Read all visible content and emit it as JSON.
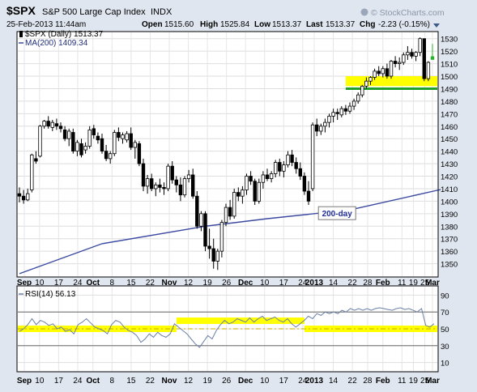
{
  "header": {
    "symbol": "$SPX",
    "name": "S&P 500 Large Cap Index",
    "exchange": "INDX",
    "credit": "© StockCharts.com",
    "date": "25-Feb-2013 11:44am",
    "quote": [
      {
        "label": "Open",
        "value": "1515.60"
      },
      {
        "label": "High",
        "value": "1525.84"
      },
      {
        "label": "Low",
        "value": "1513.37"
      },
      {
        "label": "Last",
        "value": "1513.37"
      },
      {
        "label": "Chg",
        "value": "-2.23 (-0.15%)"
      }
    ]
  },
  "legend": {
    "price": "$SPX (Daily) 1513.37",
    "ma": "MA(200) 1409.34"
  },
  "rsi_legend": "RSI(14) 56.13",
  "annotation": "200-day",
  "colors": {
    "candle": "#000000",
    "ma_line": "#3b4aa0",
    "rsi_line": "#6b7fa6",
    "highlight": "#ffff00",
    "support": "#1e9e2a",
    "background": "#ffffff",
    "frame": "#dfe6ef",
    "reference": "#c9a800"
  },
  "chart_data": [
    {
      "type": "candlestick",
      "title": "$SPX S&P 500 Large Cap Index",
      "ylim": [
        1340,
        1535
      ],
      "y_ticks": [
        1350,
        1360,
        1370,
        1380,
        1390,
        1400,
        1410,
        1420,
        1430,
        1440,
        1450,
        1460,
        1470,
        1480,
        1490,
        1500,
        1510,
        1520,
        1530
      ],
      "x_ticks": [
        "Sep",
        "10",
        "17",
        "24",
        "Oct",
        "8",
        "15",
        "22",
        "Nov",
        "12",
        "19",
        "26",
        "Dec",
        "10",
        "17",
        "24",
        "2013",
        "14",
        "22",
        "28",
        "Feb",
        "11",
        "19",
        "25",
        "Mar"
      ],
      "candles": [
        [
          1406,
          1411,
          1399,
          1404
        ],
        [
          1404,
          1409,
          1398,
          1401
        ],
        [
          1401,
          1410,
          1400,
          1406
        ],
        [
          1409,
          1438,
          1407,
          1437
        ],
        [
          1434,
          1440,
          1430,
          1432
        ],
        [
          1436,
          1461,
          1435,
          1460
        ],
        [
          1460,
          1465,
          1458,
          1464
        ],
        [
          1464,
          1468,
          1458,
          1460
        ],
        [
          1459,
          1465,
          1456,
          1463
        ],
        [
          1462,
          1466,
          1457,
          1460
        ],
        [
          1460,
          1463,
          1455,
          1458
        ],
        [
          1457,
          1460,
          1448,
          1450
        ],
        [
          1450,
          1458,
          1444,
          1456
        ],
        [
          1455,
          1458,
          1438,
          1440
        ],
        [
          1440,
          1449,
          1436,
          1447
        ],
        [
          1446,
          1450,
          1435,
          1437
        ],
        [
          1441,
          1447,
          1438,
          1444
        ],
        [
          1444,
          1460,
          1442,
          1457
        ],
        [
          1458,
          1461,
          1450,
          1453
        ],
        [
          1452,
          1455,
          1446,
          1449
        ],
        [
          1450,
          1454,
          1438,
          1440
        ],
        [
          1440,
          1445,
          1432,
          1434
        ],
        [
          1434,
          1440,
          1430,
          1438
        ],
        [
          1438,
          1457,
          1436,
          1455
        ],
        [
          1455,
          1459,
          1448,
          1451
        ],
        [
          1450,
          1455,
          1446,
          1453
        ],
        [
          1449,
          1456,
          1447,
          1454
        ],
        [
          1454,
          1459,
          1441,
          1443
        ],
        [
          1443,
          1449,
          1434,
          1447
        ],
        [
          1446,
          1448,
          1428,
          1430
        ],
        [
          1430,
          1434,
          1408,
          1412
        ],
        [
          1412,
          1421,
          1406,
          1418
        ],
        [
          1418,
          1422,
          1408,
          1410
        ],
        [
          1410,
          1415,
          1404,
          1413
        ],
        [
          1413,
          1418,
          1407,
          1411
        ],
        [
          1411,
          1415,
          1405,
          1410
        ],
        [
          1410,
          1430,
          1408,
          1428
        ],
        [
          1428,
          1432,
          1414,
          1417
        ],
        [
          1417,
          1420,
          1407,
          1413
        ],
        [
          1413,
          1419,
          1400,
          1405
        ],
        [
          1405,
          1420,
          1403,
          1418
        ],
        [
          1418,
          1425,
          1415,
          1421
        ],
        [
          1421,
          1426,
          1402,
          1404
        ],
        [
          1404,
          1408,
          1378,
          1380
        ],
        [
          1380,
          1392,
          1376,
          1390
        ],
        [
          1390,
          1392,
          1360,
          1364
        ],
        [
          1364,
          1378,
          1354,
          1362
        ],
        [
          1362,
          1370,
          1346,
          1352
        ],
        [
          1352,
          1362,
          1345,
          1360
        ],
        [
          1360,
          1385,
          1355,
          1383
        ],
        [
          1383,
          1398,
          1380,
          1395
        ],
        [
          1395,
          1401,
          1385,
          1388
        ],
        [
          1388,
          1410,
          1386,
          1407
        ],
        [
          1407,
          1411,
          1400,
          1404
        ],
        [
          1404,
          1412,
          1398,
          1409
        ],
        [
          1409,
          1422,
          1405,
          1420
        ],
        [
          1420,
          1424,
          1413,
          1416
        ],
        [
          1416,
          1418,
          1397,
          1400
        ],
        [
          1400,
          1418,
          1398,
          1415
        ],
        [
          1415,
          1424,
          1410,
          1421
        ],
        [
          1421,
          1426,
          1416,
          1418
        ],
        [
          1418,
          1424,
          1415,
          1422
        ],
        [
          1422,
          1433,
          1419,
          1431
        ],
        [
          1431,
          1434,
          1420,
          1424
        ],
        [
          1424,
          1432,
          1419,
          1429
        ],
        [
          1429,
          1440,
          1427,
          1437
        ],
        [
          1437,
          1441,
          1428,
          1431
        ],
        [
          1431,
          1435,
          1422,
          1426
        ],
        [
          1426,
          1431,
          1417,
          1420
        ],
        [
          1420,
          1423,
          1405,
          1408
        ],
        [
          1408,
          1416,
          1397,
          1400
        ],
        [
          1410,
          1463,
          1408,
          1461
        ],
        [
          1461,
          1466,
          1452,
          1456
        ],
        [
          1456,
          1462,
          1453,
          1460
        ],
        [
          1460,
          1466,
          1455,
          1463
        ],
        [
          1463,
          1470,
          1459,
          1468
        ],
        [
          1468,
          1474,
          1463,
          1471
        ],
        [
          1471,
          1474,
          1465,
          1470
        ],
        [
          1469,
          1476,
          1467,
          1474
        ],
        [
          1474,
          1477,
          1469,
          1472
        ],
        [
          1472,
          1479,
          1470,
          1476
        ],
        [
          1476,
          1482,
          1473,
          1480
        ],
        [
          1480,
          1487,
          1478,
          1485
        ],
        [
          1485,
          1493,
          1483,
          1492
        ],
        [
          1492,
          1499,
          1490,
          1496
        ],
        [
          1496,
          1500,
          1493,
          1499
        ],
        [
          1499,
          1506,
          1497,
          1504
        ],
        [
          1504,
          1508,
          1500,
          1502
        ],
        [
          1502,
          1508,
          1499,
          1506
        ],
        [
          1506,
          1510,
          1498,
          1500
        ],
        [
          1500,
          1513,
          1498,
          1512
        ],
        [
          1512,
          1516,
          1507,
          1510
        ],
        [
          1510,
          1515,
          1505,
          1511
        ],
        [
          1511,
          1519,
          1509,
          1517
        ],
        [
          1517,
          1524,
          1513,
          1519
        ],
        [
          1519,
          1522,
          1514,
          1516
        ],
        [
          1516,
          1520,
          1512,
          1519
        ],
        [
          1519,
          1531,
          1516,
          1530
        ],
        [
          1530,
          1530,
          1496,
          1498
        ],
        [
          1498,
          1512,
          1496,
          1511
        ],
        [
          1515.6,
          1525.84,
          1513.37,
          1513.37
        ]
      ],
      "series": [
        {
          "name": "MA(200)",
          "x": [
            0,
            20,
            45,
            60,
            80,
            102
          ],
          "values": [
            1342,
            1366,
            1380,
            1386,
            1393,
            1409.34
          ]
        }
      ],
      "annotations": [
        {
          "text": "200-day",
          "x": 72,
          "y": 1393
        },
        {
          "type": "highlight",
          "x_range": [
            79,
            102
          ],
          "y_range": [
            1492,
            1500
          ]
        },
        {
          "type": "support",
          "x_range": [
            79,
            102
          ],
          "y": 1490
        }
      ]
    },
    {
      "type": "line",
      "ylim": [
        0,
        100
      ],
      "y_ticks": [
        10,
        30,
        50,
        70,
        90
      ],
      "series": [
        {
          "name": "RSI(14)",
          "values": [
            47,
            50,
            55,
            62,
            55,
            60,
            58,
            54,
            56,
            50,
            52,
            47,
            49,
            44,
            55,
            58,
            62,
            57,
            52,
            50,
            48,
            44,
            55,
            60,
            58,
            52,
            48,
            46,
            42,
            34,
            38,
            44,
            40,
            46,
            42,
            40,
            44,
            56,
            52,
            48,
            44,
            38,
            32,
            28,
            35,
            42,
            38,
            48,
            55,
            60,
            56,
            58,
            62,
            60,
            58,
            63,
            58,
            62,
            65,
            60,
            62,
            64,
            60,
            58,
            62,
            56,
            52,
            56,
            60,
            65,
            62,
            68,
            66,
            70,
            68,
            70,
            68,
            72,
            70,
            74,
            72,
            74,
            72,
            74,
            72,
            74,
            75,
            74,
            73,
            72,
            74,
            75,
            73,
            74,
            72,
            70,
            74,
            54,
            52,
            56.13
          ]
        }
      ],
      "reference_lines": [
        70,
        30
      ]
    }
  ]
}
